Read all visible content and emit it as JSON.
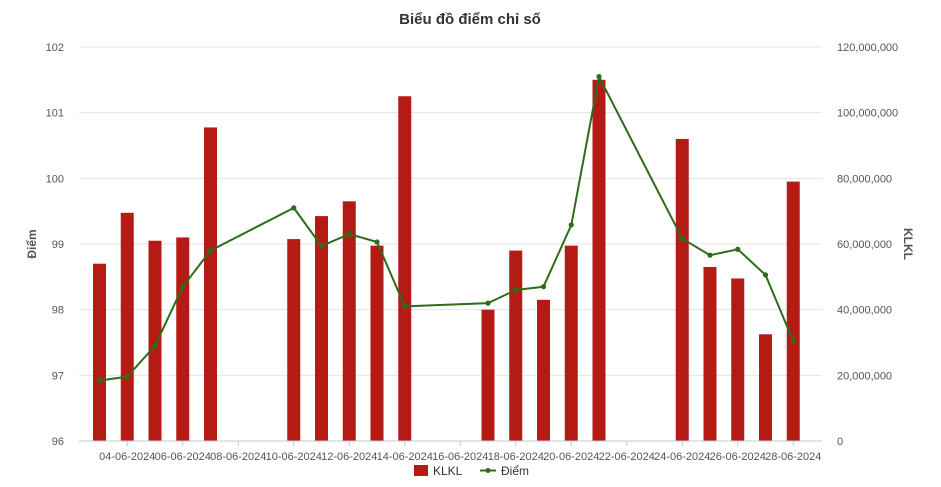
{
  "chart_data": {
    "type": "bar+line",
    "title": "Biểu đồ điểm chỉ số",
    "ylabel_left": "Điểm",
    "ylabel_right": "KLKL",
    "ylim_left": [
      96,
      102
    ],
    "yticks_left": [
      "96",
      "97",
      "98",
      "99",
      "100",
      "101",
      "102"
    ],
    "ylim_right": [
      0,
      120000000
    ],
    "yticks_right": [
      "0",
      "20,000,000",
      "40,000,000",
      "60,000,000",
      "80,000,000",
      "100,000,000",
      "120,000,000"
    ],
    "xlim": [
      "2024-06-03",
      "2024-06-28"
    ],
    "x_tick_labels": [
      "04-06-2024",
      "06-06-2024",
      "08-06-2024",
      "10-06-2024",
      "12-06-2024",
      "14-06-2024",
      "16-06-2024",
      "18-06-2024",
      "20-06-2024",
      "22-06-2024",
      "24-06-2024",
      "26-06-2024",
      "28-06-2024"
    ],
    "x_tick_dates": [
      "2024-06-04",
      "2024-06-06",
      "2024-06-08",
      "2024-06-10",
      "2024-06-12",
      "2024-06-14",
      "2024-06-16",
      "2024-06-18",
      "2024-06-20",
      "2024-06-22",
      "2024-06-24",
      "2024-06-26",
      "2024-06-28"
    ],
    "dates": [
      "2024-06-03",
      "2024-06-04",
      "2024-06-05",
      "2024-06-06",
      "2024-06-07",
      "2024-06-10",
      "2024-06-11",
      "2024-06-12",
      "2024-06-13",
      "2024-06-14",
      "2024-06-17",
      "2024-06-18",
      "2024-06-19",
      "2024-06-20",
      "2024-06-21",
      "2024-06-24",
      "2024-06-25",
      "2024-06-26",
      "2024-06-27",
      "2024-06-28"
    ],
    "series": [
      {
        "name": "KLKL",
        "type": "bar",
        "axis": "right",
        "color": "#b31b14",
        "values": [
          54000000,
          69500000,
          61000000,
          62000000,
          95500000,
          61500000,
          68500000,
          73000000,
          59500000,
          105000000,
          40000000,
          58000000,
          43000000,
          59500000,
          110000000,
          92000000,
          53000000,
          49500000,
          32500000,
          79000000
        ]
      },
      {
        "name": "Điểm",
        "type": "line",
        "axis": "left",
        "color": "#2e6b1a",
        "values": [
          96.92,
          96.98,
          97.45,
          98.35,
          98.9,
          99.55,
          98.97,
          99.15,
          99.03,
          98.05,
          98.1,
          98.3,
          98.35,
          99.29,
          101.55,
          99.08,
          98.83,
          98.92,
          98.53,
          97.52
        ]
      }
    ],
    "legend_position": "bottom-center",
    "grid": true
  }
}
